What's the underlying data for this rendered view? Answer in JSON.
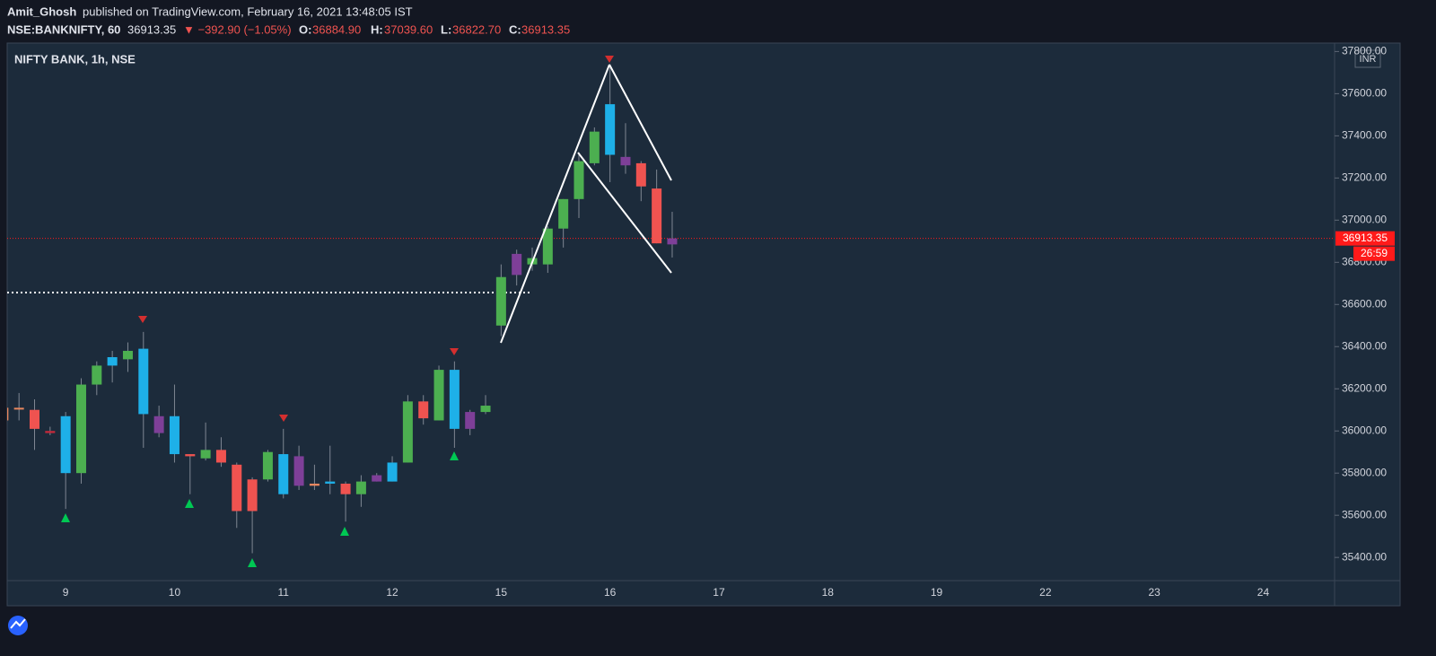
{
  "header": {
    "author": "Amit_Ghosh",
    "published": "published on TradingView.com, February 16, 2021 13:48:05 IST",
    "symbol": "NSE:BANKNIFTY, 60",
    "price": "36913.35",
    "change": "▼ −392.90 (−1.05%)",
    "o_label": "O:",
    "o": "36884.90",
    "h_label": "H:",
    "h": "37039.60",
    "l_label": "L:",
    "l": "36822.70",
    "c_label": "C:",
    "c": "36913.35"
  },
  "chart_data": {
    "type": "candlestick",
    "title": "NIFTY BANK, 1h, NSE",
    "currency": "INR",
    "x_labels": [
      "9",
      "10",
      "11",
      "12",
      "15",
      "16",
      "17",
      "18",
      "19",
      "22",
      "23",
      "24"
    ],
    "open": [
      36110,
      36110,
      36100,
      36000,
      36070,
      35800,
      36220,
      36310,
      36340,
      36390,
      36070,
      36070,
      35890,
      35870,
      35910,
      35840,
      35770,
      35770,
      35890,
      35880,
      35750,
      35760,
      35750,
      35700,
      35760,
      35760,
      35850,
      36140,
      36050,
      36290,
      36010,
      36090,
      36500,
      36740,
      36790,
      36790,
      36960,
      37100,
      37270,
      37310,
      37300,
      37270,
      37150,
      36884.9
    ],
    "high": [
      36130,
      36180,
      36150,
      36020,
      36090,
      36250,
      36330,
      36380,
      36420,
      36470,
      36120,
      36220,
      35890,
      36040,
      35970,
      35850,
      35780,
      35910,
      36010,
      35930,
      35840,
      35930,
      35760,
      35790,
      35800,
      35880,
      36170,
      36170,
      36310,
      36330,
      36100,
      36170,
      36790,
      36860,
      36870,
      36970,
      37100,
      37310,
      37440,
      37740,
      37460,
      37280,
      37240,
      37039.6
    ],
    "low": [
      36040,
      36050,
      35910,
      35980,
      35630,
      35750,
      36170,
      36230,
      36280,
      35920,
      35970,
      35850,
      35700,
      35860,
      35830,
      35540,
      35420,
      35760,
      35680,
      35720,
      35720,
      35700,
      35570,
      35640,
      35760,
      35760,
      35850,
      36030,
      36050,
      35920,
      35980,
      36080,
      36450,
      36690,
      36760,
      36750,
      36870,
      37010,
      37260,
      37180,
      37220,
      37090,
      36890,
      36822.7
    ],
    "close": [
      36050,
      36110,
      36010,
      35990,
      35800,
      36220,
      36310,
      36350,
      36380,
      36080,
      35990,
      35890,
      35880,
      35910,
      35850,
      35620,
      35620,
      35900,
      35700,
      35740,
      35740,
      35750,
      35700,
      35760,
      35790,
      35850,
      36140,
      36060,
      36290,
      36010,
      36090,
      36120,
      36730,
      36840,
      36820,
      36960,
      37100,
      37280,
      37420,
      37550,
      37260,
      37160,
      36890,
      36913.35
    ],
    "colors": [
      "#e8875f",
      "#e8875f",
      "#ef5350",
      "#c2293b",
      "#1eb0e8",
      "#4caf50",
      "#4caf50",
      "#1eb0e8",
      "#4caf50",
      "#1eb0e8",
      "#7e3f98",
      "#1eb0e8",
      "#ef5350",
      "#4caf50",
      "#ef5350",
      "#ef5350",
      "#ef5350",
      "#4caf50",
      "#1eb0e8",
      "#7e3f98",
      "#e8875f",
      "#1eb0e8",
      "#ef5350",
      "#4caf50",
      "#7e3f98",
      "#1eb0e8",
      "#4caf50",
      "#ef5350",
      "#4caf50",
      "#1eb0e8",
      "#7e3f98",
      "#4caf50",
      "#4caf50",
      "#7e3f98",
      "#4caf50",
      "#4caf50",
      "#4caf50",
      "#4caf50",
      "#4caf50",
      "#1eb0e8",
      "#7e3f98",
      "#ef5350",
      "#ef5350",
      "#7e3f98"
    ],
    "ylim": [
      35290,
      37840
    ],
    "yticks": [
      {
        "value": 35400,
        "label": "35400.00"
      },
      {
        "value": 35600,
        "label": "35600.00"
      },
      {
        "value": 35800,
        "label": "35800.00"
      },
      {
        "value": 36000,
        "label": "36000.00"
      },
      {
        "value": 36200,
        "label": "36200.00"
      },
      {
        "value": 36400,
        "label": "36400.00"
      },
      {
        "value": 36600,
        "label": "36600.00"
      },
      {
        "value": 36800,
        "label": "36800.00"
      },
      {
        "value": 37000,
        "label": "37000.00"
      },
      {
        "value": 37200,
        "label": "37200.00"
      },
      {
        "value": 37400,
        "label": "37400.00"
      },
      {
        "value": 37600,
        "label": "37600.00"
      },
      {
        "value": 37800,
        "label": "37800.00"
      }
    ],
    "last_price": {
      "value": 36913.35,
      "label": "36913.35"
    },
    "countdown": "26:59",
    "last_color": "#ff1a1a"
  }
}
